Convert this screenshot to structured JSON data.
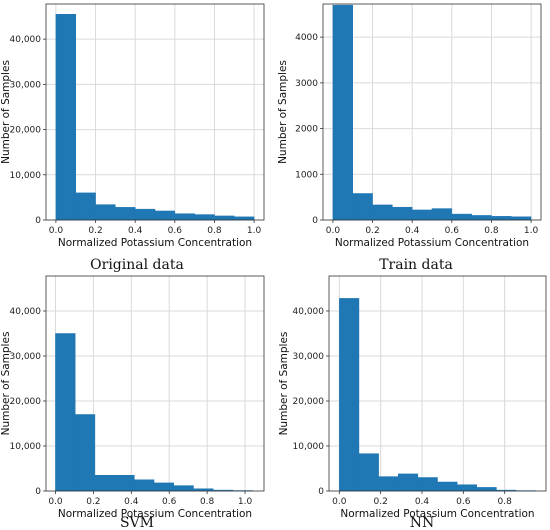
{
  "chart_data": [
    {
      "type": "bar",
      "caption": "Original data",
      "xlabel": "Normalized Potassium Concentration",
      "ylabel": "Number of Samples",
      "bin_edges": [
        0.0,
        0.1,
        0.2,
        0.3,
        0.4,
        0.5,
        0.6,
        0.7,
        0.8,
        0.9,
        1.0
      ],
      "values": [
        45500,
        6000,
        3400,
        2800,
        2400,
        2000,
        1400,
        1200,
        900,
        700
      ],
      "xlim": [
        -0.05,
        1.05
      ],
      "ylim": [
        0,
        47775
      ],
      "xticks": [
        0.0,
        0.2,
        0.4,
        0.6,
        0.8,
        1.0
      ],
      "xtick_labels": [
        "0.0",
        "0.2",
        "0.4",
        "0.6",
        "0.8",
        "1.0"
      ],
      "yticks": [
        0,
        10000,
        20000,
        30000,
        40000
      ],
      "ytick_labels": [
        "0",
        "10,000",
        "20,000",
        "30,000",
        "40,000"
      ],
      "grid": true,
      "bar_color": "#1f77b4"
    },
    {
      "type": "bar",
      "caption": "Train data",
      "xlabel": "Normalized Potassium Concentration",
      "ylabel": "Number of Samples",
      "bin_edges": [
        0.0,
        0.1,
        0.2,
        0.3,
        0.4,
        0.5,
        0.6,
        0.7,
        0.8,
        0.9,
        1.0
      ],
      "values": [
        4700,
        580,
        330,
        280,
        220,
        250,
        130,
        100,
        80,
        70
      ],
      "xlim": [
        -0.05,
        1.05
      ],
      "ylim": [
        0,
        4725
      ],
      "xticks": [
        0.0,
        0.2,
        0.4,
        0.6,
        0.8,
        1.0
      ],
      "xtick_labels": [
        "0.0",
        "0.2",
        "0.4",
        "0.6",
        "0.8",
        "1.0"
      ],
      "yticks": [
        0,
        1000,
        2000,
        3000,
        4000
      ],
      "ytick_labels": [
        "0",
        "1000",
        "2000",
        "3000",
        "4000"
      ],
      "grid": true,
      "bar_color": "#1f77b4"
    },
    {
      "type": "bar",
      "caption": "SVM",
      "xlabel": "Normalized Potassium Concentration",
      "ylabel": "Number of Samples",
      "bin_edges": [
        0.0,
        0.104,
        0.208,
        0.312,
        0.416,
        0.52,
        0.624,
        0.728,
        0.832,
        0.936,
        1.04
      ],
      "values": [
        35000,
        17000,
        3500,
        3500,
        2500,
        1800,
        1200,
        500,
        200,
        100
      ],
      "xlim": [
        -0.05,
        1.1
      ],
      "ylim": [
        0,
        47775
      ],
      "xticks": [
        0.0,
        0.2,
        0.4,
        0.6,
        0.8,
        1.0
      ],
      "xtick_labels": [
        "0.0",
        "0.2",
        "0.4",
        "0.6",
        "0.8",
        "1.0"
      ],
      "yticks": [
        0,
        10000,
        20000,
        30000,
        40000
      ],
      "ytick_labels": [
        "0",
        "10,000",
        "20,000",
        "30,000",
        "40,000"
      ],
      "grid": true,
      "bar_color": "#1f77b4"
    },
    {
      "type": "bar",
      "caption": "NN",
      "xlabel": "Normalized Potassium Concentration",
      "ylabel": "Number of Samples",
      "bin_edges": [
        0.0,
        0.095,
        0.19,
        0.285,
        0.38,
        0.475,
        0.57,
        0.665,
        0.76,
        0.855,
        0.95
      ],
      "values": [
        42800,
        8300,
        3200,
        3800,
        3000,
        2000,
        1400,
        800,
        200,
        80
      ],
      "xlim": [
        -0.05,
        1.0
      ],
      "ylim": [
        0,
        47775
      ],
      "xticks": [
        0.0,
        0.2,
        0.4,
        0.6,
        0.8
      ],
      "xtick_labels": [
        "0.0",
        "0.2",
        "0.4",
        "0.6",
        "0.8"
      ],
      "yticks": [
        0,
        10000,
        20000,
        30000,
        40000
      ],
      "ytick_labels": [
        "0",
        "10,000",
        "20,000",
        "30,000",
        "40,000"
      ],
      "grid": true,
      "bar_color": "#1f77b4"
    }
  ]
}
